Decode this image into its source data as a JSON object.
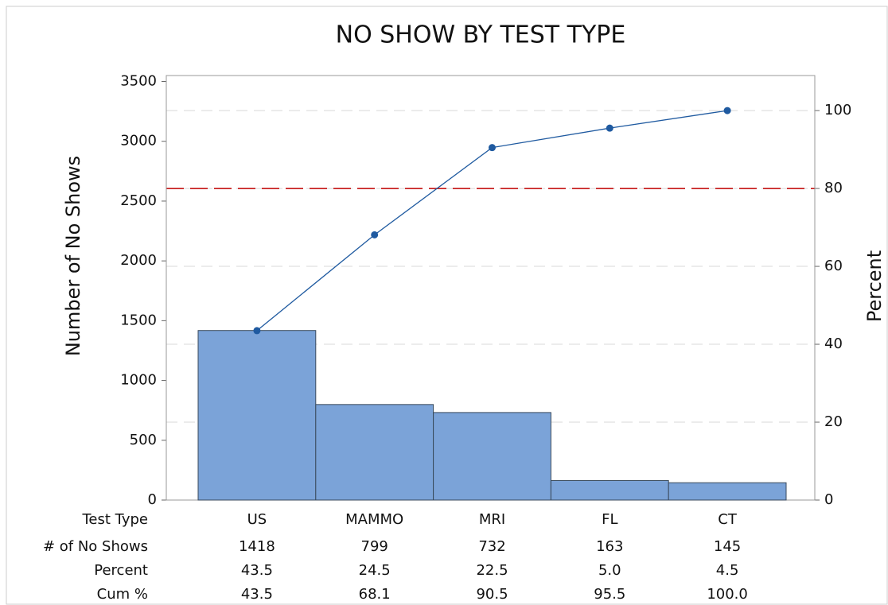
{
  "chart_data": {
    "type": "pareto",
    "title": "NO SHOW BY TEST TYPE",
    "xlabel": "Test Type",
    "ylabel": "Number of No Shows",
    "y2label": "Percent",
    "categories": [
      "US",
      "MAMMO",
      "MRI",
      "FL",
      "CT"
    ],
    "series": [
      {
        "name": "# of No Shows",
        "color": "#7ba3d8",
        "values": [
          1418,
          799,
          732,
          163,
          145
        ]
      },
      {
        "name": "Percent",
        "values": [
          43.5,
          24.5,
          22.5,
          5.0,
          4.5
        ],
        "value_labels": [
          "43.5",
          "24.5",
          "22.5",
          "5.0",
          "4.5"
        ]
      },
      {
        "name": "Cum %",
        "color": "#1f5aa0",
        "axis": "y2",
        "values": [
          43.5,
          68.1,
          90.5,
          95.5,
          100.0
        ],
        "value_labels": [
          "43.5",
          "68.1",
          "90.5",
          "95.5",
          "100.0"
        ]
      }
    ],
    "ylim": [
      0,
      3550
    ],
    "yticks": [
      0,
      500,
      1000,
      1500,
      2000,
      2500,
      3000,
      3500
    ],
    "y2lim": [
      0,
      109
    ],
    "y2ticks": [
      0,
      20,
      40,
      60,
      80,
      100
    ],
    "grid": true,
    "reference_line": {
      "value": 80,
      "axis": "y2",
      "color": "#c00000"
    }
  }
}
